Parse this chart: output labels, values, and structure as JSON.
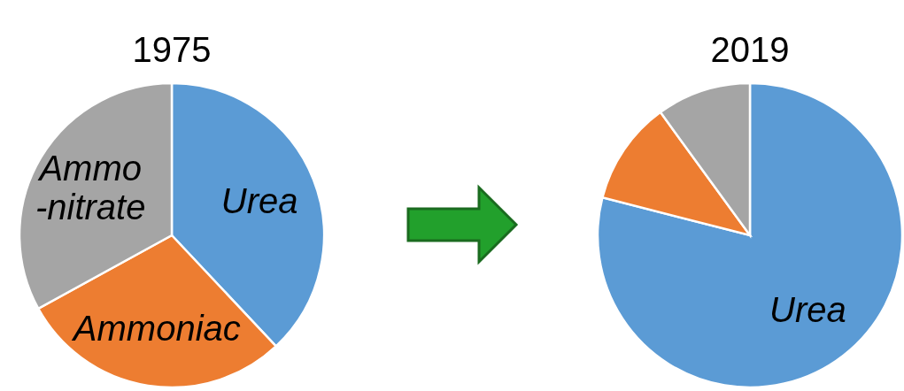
{
  "chart_data": [
    {
      "type": "pie",
      "title": "1975",
      "categories": [
        "Urea",
        "Ammoniac",
        "Ammo\n-nitrate"
      ],
      "values": [
        38,
        29,
        33
      ],
      "colors": [
        "#5b9bd5",
        "#ed7d31",
        "#a5a5a5"
      ]
    },
    {
      "type": "pie",
      "title": "2019",
      "categories": [
        "Urea",
        null,
        null
      ],
      "values": [
        79,
        11,
        10
      ],
      "colors": [
        "#5b9bd5",
        "#ed7d31",
        "#a5a5a5"
      ]
    }
  ]
}
